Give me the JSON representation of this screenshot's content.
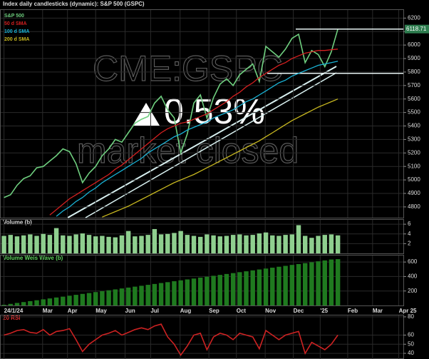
{
  "chart_data": [
    {
      "type": "line",
      "title": "Index daily candlesticks (dynamic): S&P 500 (GSPC)",
      "watermarks": [
        "CME:GSPC",
        "0.53%",
        "market closed"
      ],
      "x": [
        0,
        1,
        2,
        3,
        4,
        5,
        6,
        7,
        8,
        9,
        10,
        11,
        12,
        13,
        14,
        15,
        16,
        17,
        18,
        19,
        20,
        21,
        22,
        23,
        24,
        25,
        26,
        27,
        28,
        29,
        30,
        31,
        32,
        33,
        34,
        35,
        36,
        37,
        38,
        39,
        40,
        41,
        42,
        43,
        44,
        45,
        46,
        47,
        48,
        49,
        50,
        51
      ],
      "xlim": [
        -0.5,
        61
      ],
      "ylim": [
        4720,
        6260
      ],
      "yticks": [
        4800,
        4900,
        5000,
        5100,
        5200,
        5300,
        5400,
        5500,
        5600,
        5700,
        5800,
        5900,
        6000,
        6100,
        6200
      ],
      "levels": [
        5790
      ],
      "grid": true,
      "series": [
        {
          "name": "S&P 500",
          "color": "#6fcf7f",
          "values": [
            4870,
            4890,
            4960,
            5010,
            5030,
            5090,
            5100,
            5140,
            5180,
            5230,
            5210,
            5120,
            4980,
            5050,
            5100,
            5180,
            5230,
            5300,
            5280,
            5350,
            5420,
            5450,
            5470,
            5570,
            5620,
            5520,
            5460,
            5200,
            5340,
            5570,
            5630,
            5460,
            5610,
            5710,
            5750,
            5700,
            5780,
            5820,
            5860,
            5730,
            5990,
            5950,
            5910,
            5970,
            6050,
            6080,
            5870,
            5960,
            5930,
            5840,
            5950,
            6118.71
          ]
        },
        {
          "name": "50 d SMA",
          "color": "#d42020",
          "values": [
            null,
            null,
            null,
            null,
            null,
            null,
            null,
            4740,
            4780,
            4820,
            4860,
            4890,
            4920,
            4950,
            4980,
            5010,
            5040,
            5080,
            5110,
            5150,
            5190,
            5230,
            5270,
            5310,
            5350,
            5380,
            5400,
            5420,
            5430,
            5450,
            5470,
            5490,
            5520,
            5550,
            5580,
            5620,
            5650,
            5690,
            5720,
            5760,
            5790,
            5820,
            5850,
            5870,
            5900,
            5920,
            5940,
            5950,
            5960,
            5960,
            5965,
            5970
          ]
        },
        {
          "name": "100 d SMA",
          "color": "#19b3d6",
          "values": [
            null,
            null,
            null,
            null,
            null,
            null,
            null,
            null,
            4730,
            4770,
            4800,
            4840,
            4870,
            4910,
            4940,
            4980,
            5010,
            5040,
            5070,
            5100,
            5130,
            5160,
            5200,
            5230,
            5260,
            5290,
            5320,
            5340,
            5370,
            5390,
            5410,
            5430,
            5460,
            5480,
            5500,
            5520,
            5550,
            5580,
            5600,
            5630,
            5660,
            5690,
            5720,
            5740,
            5770,
            5790,
            5810,
            5830,
            5850,
            5860,
            5870,
            5880
          ]
        },
        {
          "name": "200 d SMA",
          "color": "#c8b820",
          "values": [
            null,
            null,
            null,
            null,
            null,
            null,
            null,
            null,
            null,
            null,
            null,
            null,
            null,
            null,
            null,
            4725,
            4745,
            4765,
            4785,
            4805,
            4830,
            4855,
            4880,
            4905,
            4930,
            4955,
            4980,
            5000,
            5020,
            5040,
            5065,
            5090,
            5115,
            5140,
            5165,
            5190,
            5215,
            5240,
            5265,
            5290,
            5320,
            5350,
            5380,
            5410,
            5440,
            5465,
            5490,
            5515,
            5540,
            5560,
            5580,
            5600
          ]
        }
      ]
    },
    {
      "type": "bar",
      "title": "Volume (b)",
      "color": "#8fcf8f",
      "x": [
        0,
        1,
        2,
        3,
        4,
        5,
        6,
        7,
        8,
        9,
        10,
        11,
        12,
        13,
        14,
        15,
        16,
        17,
        18,
        19,
        20,
        21,
        22,
        23,
        24,
        25,
        26,
        27,
        28,
        29,
        30,
        31,
        32,
        33,
        34,
        35,
        36,
        37,
        38,
        39,
        40,
        41,
        42,
        43,
        44,
        45,
        46,
        47,
        48,
        49,
        50,
        51
      ],
      "xlim": [
        -0.5,
        61
      ],
      "ylim": [
        0,
        6.9
      ],
      "yticks": [
        2,
        4,
        6
      ],
      "grid": true,
      "values": [
        3.6,
        3.8,
        3.5,
        3.7,
        3.9,
        3.6,
        4.0,
        3.8,
        5.2,
        3.7,
        3.6,
        3.9,
        4.1,
        3.8,
        3.5,
        3.6,
        3.4,
        3.3,
        3.7,
        4.6,
        3.5,
        3.6,
        3.8,
        5.0,
        3.9,
        4.0,
        4.2,
        4.6,
        3.8,
        3.6,
        3.4,
        3.9,
        3.7,
        3.5,
        3.6,
        3.8,
        3.9,
        3.7,
        3.8,
        4.1,
        4.3,
        3.7,
        3.6,
        3.8,
        3.9,
        5.8,
        3.6,
        3.2,
        3.6,
        3.8,
        3.9,
        3.7
      ]
    },
    {
      "type": "bar",
      "title": "Volume Weis Wave (b)",
      "color": "#1f7a1f",
      "x": [
        0,
        1,
        2,
        3,
        4,
        5,
        6,
        7,
        8,
        9,
        10,
        11,
        12,
        13,
        14,
        15,
        16,
        17,
        18,
        19,
        20,
        21,
        22,
        23,
        24,
        25,
        26,
        27,
        28,
        29,
        30,
        31,
        32,
        33,
        34,
        35,
        36,
        37,
        38,
        39,
        40,
        41,
        42,
        43,
        44,
        45,
        46,
        47,
        48,
        49,
        50,
        51
      ],
      "xlim": [
        -0.5,
        61
      ],
      "ylim": [
        0,
        690
      ],
      "yticks": [
        200,
        400,
        600
      ],
      "grid": true,
      "xticks": [
        {
          "value": 0,
          "label": "24/1/24"
        },
        {
          "value": 5.9,
          "label": "Mar"
        },
        {
          "value": 9.7,
          "label": "Apr"
        },
        {
          "value": 14.0,
          "label": "May"
        },
        {
          "value": 18.5,
          "label": "Jun"
        },
        {
          "value": 22.4,
          "label": "Jul"
        },
        {
          "value": 26.9,
          "label": "Aug"
        },
        {
          "value": 31.3,
          "label": "Sep"
        },
        {
          "value": 35.5,
          "label": "Oct"
        },
        {
          "value": 39.9,
          "label": "Nov"
        },
        {
          "value": 44.2,
          "label": "Dec"
        },
        {
          "value": 48.3,
          "label": "'25"
        },
        {
          "value": 52.5,
          "label": "Feb"
        },
        {
          "value": 56.3,
          "label": "Mar"
        },
        {
          "value": 60.3,
          "label": "Apr 25"
        }
      ],
      "values": [
        10,
        22,
        35,
        47,
        60,
        72,
        85,
        97,
        110,
        122,
        135,
        147,
        160,
        172,
        185,
        197,
        210,
        222,
        235,
        247,
        260,
        272,
        285,
        297,
        310,
        322,
        335,
        347,
        360,
        372,
        385,
        397,
        410,
        422,
        435,
        447,
        460,
        472,
        485,
        497,
        510,
        522,
        535,
        547,
        560,
        572,
        585,
        597,
        610,
        622,
        635,
        640
      ]
    },
    {
      "type": "line",
      "title": "20 RSI",
      "x": [
        0,
        1,
        2,
        3,
        4,
        5,
        6,
        7,
        8,
        9,
        10,
        11,
        12,
        13,
        14,
        15,
        16,
        17,
        18,
        19,
        20,
        21,
        22,
        23,
        24,
        25,
        26,
        27,
        28,
        29,
        30,
        31,
        32,
        33,
        34,
        35,
        36,
        37,
        38,
        39,
        40,
        41,
        42,
        43,
        44,
        45,
        46,
        47,
        48,
        49,
        50,
        51
      ],
      "xlim": [
        -0.5,
        61
      ],
      "ylim": [
        33.8,
        81.5
      ],
      "yticks": [
        40,
        50,
        60,
        80
      ],
      "grid": true,
      "series": [
        {
          "name": "RSI",
          "color": "#cc2222",
          "values": [
            60,
            62,
            65,
            66,
            63,
            62,
            66,
            60,
            64,
            65,
            67,
            55,
            42,
            50,
            55,
            60,
            62,
            65,
            60,
            63,
            66,
            68,
            66,
            70,
            72,
            58,
            50,
            38,
            48,
            60,
            62,
            44,
            58,
            62,
            60,
            55,
            62,
            60,
            58,
            45,
            65,
            60,
            55,
            60,
            62,
            64,
            40,
            52,
            48,
            44,
            50,
            60
          ]
        }
      ]
    }
  ]
}
